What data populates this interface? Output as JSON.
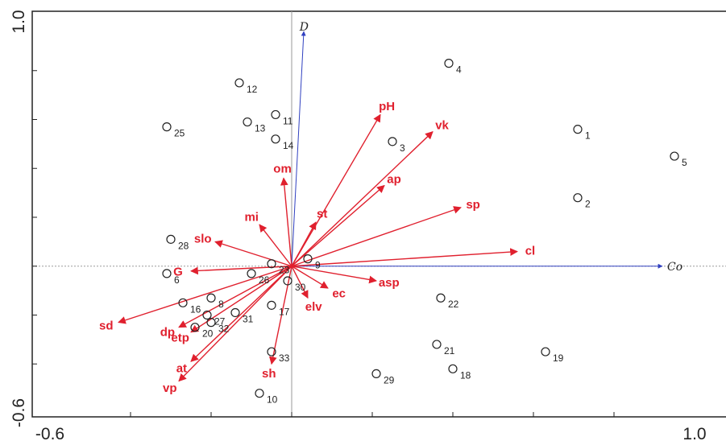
{
  "chart_data": {
    "type": "scatter",
    "title": "",
    "xlabel": "",
    "ylabel": "",
    "xlim": [
      -0.6,
      1.0
    ],
    "ylim": [
      -0.6,
      1.0
    ],
    "x_tick_labels": [
      {
        "value": -0.6,
        "label": "-0.6"
      },
      {
        "value": 1.0,
        "label": "1.0"
      }
    ],
    "y_tick_labels": [
      {
        "value": 1.0,
        "label": "1.0"
      },
      {
        "value": -0.6,
        "label": "-0.6"
      }
    ],
    "x_minor_ticks": [
      -0.4,
      -0.2,
      0.0,
      0.2,
      0.4,
      0.6,
      0.8
    ],
    "y_minor_ticks": [
      0.8,
      0.6,
      0.4,
      0.2,
      0.0,
      -0.2,
      -0.4
    ],
    "environmental_vectors": [
      {
        "name": "D",
        "x": 0.03,
        "y": 0.96
      },
      {
        "name": "Co",
        "x": 0.92,
        "y": 0.0
      }
    ],
    "variable_arrows": [
      {
        "name": "pH",
        "x": 0.22,
        "y": 0.62
      },
      {
        "name": "vk",
        "x": 0.35,
        "y": 0.55
      },
      {
        "name": "ap",
        "x": 0.23,
        "y": 0.33
      },
      {
        "name": "sp",
        "x": 0.42,
        "y": 0.24
      },
      {
        "name": "cl",
        "x": 0.56,
        "y": 0.06
      },
      {
        "name": "om",
        "x": -0.02,
        "y": 0.36
      },
      {
        "name": "mi",
        "x": -0.08,
        "y": 0.17
      },
      {
        "name": "st",
        "x": 0.06,
        "y": 0.18
      },
      {
        "name": "slo",
        "x": -0.19,
        "y": 0.1
      },
      {
        "name": "G",
        "x": -0.25,
        "y": -0.02
      },
      {
        "name": "asp",
        "x": 0.21,
        "y": -0.06
      },
      {
        "name": "ec",
        "x": 0.09,
        "y": -0.09
      },
      {
        "name": "elv",
        "x": 0.04,
        "y": -0.13
      },
      {
        "name": "sd",
        "x": -0.43,
        "y": -0.23
      },
      {
        "name": "dp",
        "x": -0.28,
        "y": -0.25
      },
      {
        "name": "etp",
        "x": -0.25,
        "y": -0.27
      },
      {
        "name": "at",
        "x": -0.25,
        "y": -0.39
      },
      {
        "name": "vp",
        "x": -0.28,
        "y": -0.47
      },
      {
        "name": "sh",
        "x": -0.05,
        "y": -0.4
      }
    ],
    "sites": [
      {
        "label": "1",
        "x": 0.71,
        "y": 0.56
      },
      {
        "label": "2",
        "x": 0.71,
        "y": 0.28
      },
      {
        "label": "3",
        "x": 0.25,
        "y": 0.51
      },
      {
        "label": "4",
        "x": 0.39,
        "y": 0.83
      },
      {
        "label": "5",
        "x": 0.95,
        "y": 0.45
      },
      {
        "label": "6",
        "x": -0.31,
        "y": -0.03
      },
      {
        "label": "8",
        "x": -0.2,
        "y": -0.13
      },
      {
        "label": "9",
        "x": 0.04,
        "y": 0.03
      },
      {
        "label": "10",
        "x": -0.08,
        "y": -0.52
      },
      {
        "label": "11",
        "x": -0.04,
        "y": 0.62
      },
      {
        "label": "12",
        "x": -0.13,
        "y": 0.75
      },
      {
        "label": "13",
        "x": -0.11,
        "y": 0.59
      },
      {
        "label": "14",
        "x": -0.04,
        "y": 0.52
      },
      {
        "label": "16",
        "x": -0.27,
        "y": -0.15
      },
      {
        "label": "17",
        "x": -0.05,
        "y": -0.16
      },
      {
        "label": "18",
        "x": 0.4,
        "y": -0.42
      },
      {
        "label": "19",
        "x": 0.63,
        "y": -0.35
      },
      {
        "label": "20",
        "x": -0.24,
        "y": -0.25
      },
      {
        "label": "21",
        "x": 0.36,
        "y": -0.32
      },
      {
        "label": "22",
        "x": 0.37,
        "y": -0.13
      },
      {
        "label": "23",
        "x": -0.05,
        "y": 0.01
      },
      {
        "label": "25",
        "x": -0.31,
        "y": 0.57
      },
      {
        "label": "26",
        "x": -0.1,
        "y": -0.03
      },
      {
        "label": "27",
        "x": -0.21,
        "y": -0.2
      },
      {
        "label": "28",
        "x": -0.3,
        "y": 0.11
      },
      {
        "label": "29",
        "x": 0.21,
        "y": -0.44
      },
      {
        "label": "30",
        "x": -0.01,
        "y": -0.06
      },
      {
        "label": "31",
        "x": -0.14,
        "y": -0.19
      },
      {
        "label": "32",
        "x": -0.2,
        "y": -0.23
      },
      {
        "label": "33",
        "x": -0.05,
        "y": -0.35
      }
    ],
    "colors": {
      "arrows": "#e0202e",
      "vectors": "#3040c0",
      "axes": "#9a9a9a",
      "points": "#222222",
      "frame": "#222222"
    },
    "grid": false,
    "legend": "none"
  }
}
